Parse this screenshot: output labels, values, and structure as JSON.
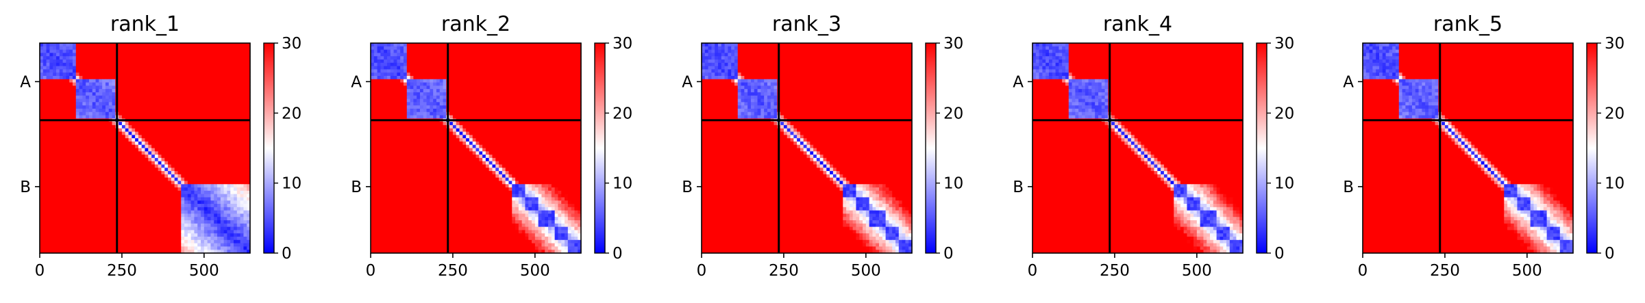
{
  "chart_data": {
    "type": "heatmap",
    "description_colormap": "bwr",
    "colors": {
      "low": "#0000ff",
      "mid": "#ffffff",
      "high": "#ff0000",
      "divider": "#000000"
    },
    "clim": [
      0,
      30
    ],
    "colorbar_ticks": [
      "0",
      "10",
      "20",
      "30"
    ],
    "x_ticks": [
      {
        "value": 0,
        "label": "0"
      },
      {
        "value": 250,
        "label": "250"
      },
      {
        "value": 500,
        "label": "500"
      }
    ],
    "chain_labels": [
      "A",
      "B"
    ],
    "total_length": 640,
    "chain_boundary": 235,
    "panels": [
      {
        "title": "rank_1"
      },
      {
        "title": "rank_2"
      },
      {
        "title": "rank_3"
      },
      {
        "title": "rank_4"
      },
      {
        "title": "rank_5"
      }
    ]
  }
}
